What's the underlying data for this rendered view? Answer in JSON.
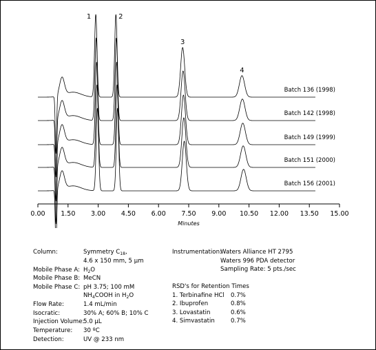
{
  "chart_data": {
    "type": "line",
    "xlabel": "Minutes",
    "xlim": [
      0,
      15
    ],
    "x_ticks": [
      "0.00",
      "1.50",
      "3.00",
      "4.50",
      "6.00",
      "7.50",
      "9.00",
      "10.50",
      "12.00",
      "13.50",
      "15.00"
    ],
    "injection_time": 0.85,
    "peaks": [
      {
        "label": "1",
        "time": 2.88,
        "height": 1.0
      },
      {
        "label": "2",
        "time": 3.88,
        "height": 1.0
      },
      {
        "label": "3",
        "time": 7.2,
        "height": 0.6
      },
      {
        "label": "4",
        "time": 10.15,
        "height": 0.26
      }
    ],
    "series": [
      {
        "name": "Batch 136 (1998)",
        "shift": 0.0
      },
      {
        "name": "Batch 142 (1998)",
        "shift": 0.02
      },
      {
        "name": "Batch 149 (1999)",
        "shift": 0.04
      },
      {
        "name": "Batch 151 (2000)",
        "shift": 0.06
      },
      {
        "name": "Batch 156 (2001)",
        "shift": 0.08
      }
    ]
  },
  "conditions": {
    "rows": [
      {
        "label": "Column:",
        "value": "Symmetry C18,",
        "value_line2": "4.6 x 150 mm, 5 µm"
      },
      {
        "label": "Mobile Phase A:",
        "value": "H2O"
      },
      {
        "label": "Mobile Phase B:",
        "value": "MeCN"
      },
      {
        "label": "Mobile Phase C:",
        "value": "pH 3.75; 100 mM",
        "value_line2": "NH4COOH in H2O"
      },
      {
        "label": "Flow Rate:",
        "value": "1.4 mL/min"
      },
      {
        "label": "Isocratic:",
        "value": "30% A; 60% B; 10% C"
      },
      {
        "label": "Injection Volume:",
        "value": "5.0 µL"
      },
      {
        "label": "Temperature:",
        "value": "30 ºC"
      },
      {
        "label": "Detection:",
        "value": "UV @ 233 nm"
      }
    ]
  },
  "instrumentation": {
    "label": "Instrumentation:",
    "lines": [
      "Waters Alliance HT 2795",
      "Waters 996 PDA detector",
      "Sampling Rate: 5 pts./sec"
    ]
  },
  "rsd": {
    "title": "RSD's for Retention Times",
    "items": [
      {
        "name": "1. Terbinafine HCl",
        "value": "0.7%"
      },
      {
        "name": "2. Ibuprofen",
        "value": "0.8%"
      },
      {
        "name": "3. Lovastatin",
        "value": "0.6%"
      },
      {
        "name": "4. Simvastatin",
        "value": "0.7%"
      }
    ]
  }
}
